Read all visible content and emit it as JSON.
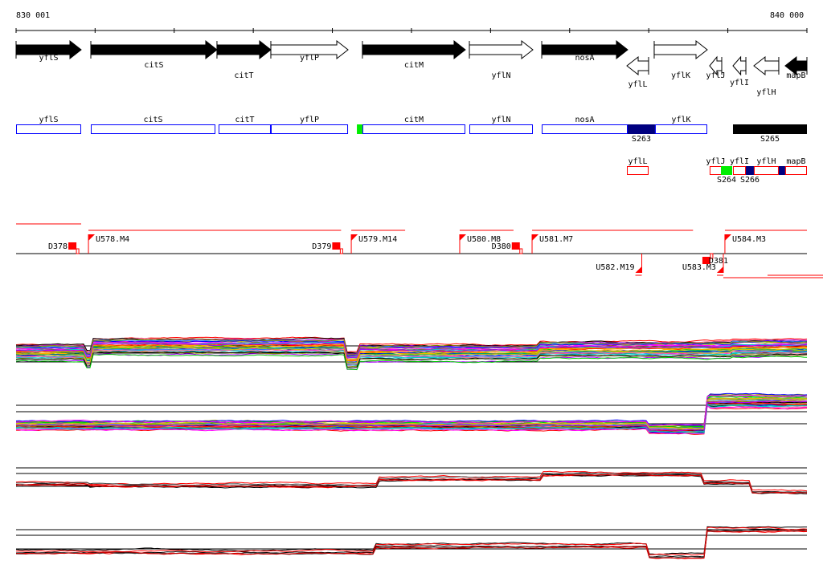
{
  "axis": {
    "start_label": "830 001",
    "end_label": "840 000",
    "start": 830001,
    "end": 840000,
    "tick_interval": 1000
  },
  "colors": {
    "forward_filled": "#000000",
    "box_blue": "#0000ff",
    "box_red": "#ff0000",
    "green": "#00ee00",
    "navy": "#000080",
    "regulatory": "#ff0000"
  },
  "genes": [
    {
      "name": "yflS",
      "start": 830001,
      "end": 830824,
      "strand": "+",
      "filled": true
    },
    {
      "name": "citS",
      "start": 830946,
      "end": 832541,
      "strand": "+",
      "filled": true
    },
    {
      "name": "citT",
      "start": 832541,
      "end": 833222,
      "strand": "+",
      "filled": true
    },
    {
      "name": "yflP",
      "start": 833222,
      "end": 834198,
      "strand": "+",
      "filled": false
    },
    {
      "name": "citM",
      "start": 834380,
      "end": 835681,
      "strand": "+",
      "filled": true
    },
    {
      "name": "yflN",
      "start": 835732,
      "end": 836535,
      "strand": "+",
      "filled": false
    },
    {
      "name": "nosA",
      "start": 836647,
      "end": 837734,
      "strand": "+",
      "filled": true
    },
    {
      "name": "yflL",
      "start": 837724,
      "end": 837998,
      "strand": "-",
      "filled": false
    },
    {
      "name": "yflK",
      "start": 838069,
      "end": 838740,
      "strand": "+",
      "filled": false
    },
    {
      "name": "yflJ",
      "start": 838770,
      "end": 838923,
      "strand": "-",
      "filled": false
    },
    {
      "name": "yflI",
      "start": 839065,
      "end": 839228,
      "strand": "-",
      "filled": false
    },
    {
      "name": "yflH",
      "start": 839329,
      "end": 839644,
      "strand": "-",
      "filled": false
    },
    {
      "name": "mapB",
      "start": 839725,
      "end": 840000,
      "strand": "-",
      "filled": true
    }
  ],
  "forward_units": [
    {
      "label": "yflS",
      "start": 830001,
      "end": 830824,
      "color": "blue"
    },
    {
      "label": "citS",
      "start": 830946,
      "end": 832521,
      "color": "blue"
    },
    {
      "label": "citT",
      "start": 832561,
      "end": 833222,
      "color": "blue"
    },
    {
      "label": "yflP",
      "start": 833222,
      "end": 834198,
      "color": "blue"
    },
    {
      "label": "",
      "start": 834310,
      "end": 834380,
      "color": "green"
    },
    {
      "label": "citM",
      "start": 834380,
      "end": 835681,
      "color": "blue"
    },
    {
      "label": "yflN",
      "start": 835732,
      "end": 836535,
      "color": "blue"
    },
    {
      "label": "nosA",
      "start": 836647,
      "end": 837734,
      "color": "blue"
    },
    {
      "label": "S263",
      "start": 837734,
      "end": 838079,
      "color": "navy",
      "below": true
    },
    {
      "label": "yflK",
      "start": 838079,
      "end": 838740,
      "color": "blue"
    },
    {
      "label": "S265",
      "start": 839065,
      "end": 840000,
      "color": "black",
      "below": true
    }
  ],
  "reverse_units": [
    {
      "label": "yflL",
      "start": 837724,
      "end": 837998,
      "color": "red"
    },
    {
      "label": "yflJ",
      "start": 838770,
      "end": 838923,
      "color": "red"
    },
    {
      "label": "S264",
      "start": 838913,
      "end": 839055,
      "color": "green",
      "below": true
    },
    {
      "label": "yflI",
      "start": 839065,
      "end": 839228,
      "color": "red"
    },
    {
      "label": "S266",
      "start": 839228,
      "end": 839329,
      "color": "navy",
      "below": true
    },
    {
      "label": "yflH",
      "start": 839329,
      "end": 839644,
      "color": "red"
    },
    {
      "label": "",
      "start": 839644,
      "end": 839725,
      "color": "navy"
    },
    {
      "label": "mapB",
      "start": 839725,
      "end": 840000,
      "color": "red"
    }
  ],
  "regulatory": [
    {
      "label": "D378",
      "type": "terminator",
      "pos": 830764,
      "strand": "+"
    },
    {
      "label": "U578.M4",
      "pos": 830916,
      "type": "promoter",
      "strand": "+",
      "extent": 834110
    },
    {
      "label": "D379",
      "type": "terminator",
      "pos": 834100,
      "strand": "+"
    },
    {
      "label": "U579.M14",
      "pos": 834239,
      "type": "promoter",
      "strand": "+",
      "extent": 834920
    },
    {
      "label": "U580.M8",
      "pos": 835610,
      "type": "promoter",
      "strand": "+",
      "extent": 836290
    },
    {
      "label": "D380",
      "type": "terminator",
      "pos": 836370,
      "strand": "+"
    },
    {
      "label": "U581.M7",
      "pos": 836525,
      "type": "promoter",
      "strand": "+",
      "extent": 838560
    },
    {
      "label": "U582.M19",
      "pos": 837912,
      "type": "promoter",
      "strand": "-"
    },
    {
      "label": "U583.M3",
      "pos": 838943,
      "type": "promoter",
      "strand": "-"
    },
    {
      "label": "D381",
      "type": "terminator",
      "pos": 838780,
      "strand": "-"
    },
    {
      "label": "U584.M3",
      "pos": 838963,
      "type": "promoter",
      "strand": "+",
      "extent": 840000
    }
  ]
}
